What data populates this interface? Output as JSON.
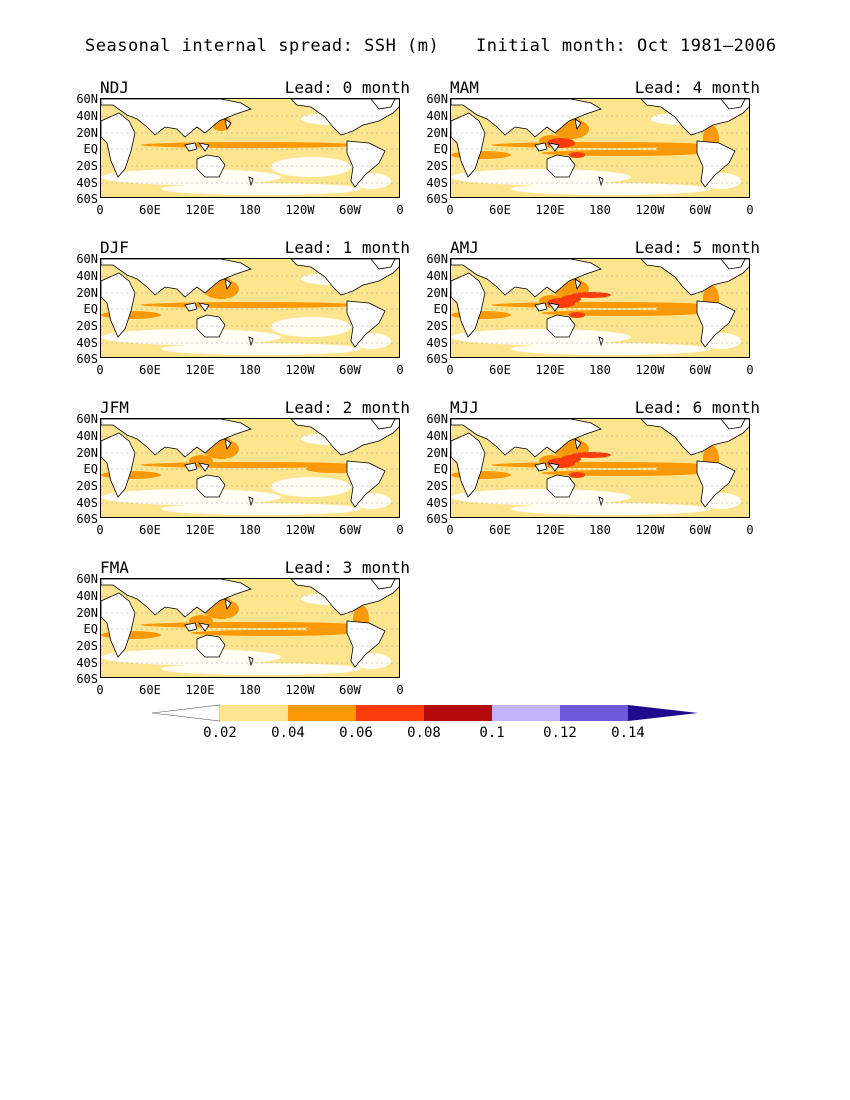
{
  "title": "Seasonal internal spread: SSH (m)",
  "subtitle": "Initial month: Oct 1981—2006",
  "lat_labels": [
    "60N",
    "40N",
    "20N",
    "EQ",
    "20S",
    "40S",
    "60S"
  ],
  "lon_labels": [
    "0",
    "60E",
    "120E",
    "180",
    "120W",
    "60W",
    "0"
  ],
  "panels": [
    {
      "season": "NDJ",
      "lead": "Lead: 0 month",
      "intensity": 0
    },
    {
      "season": "MAM",
      "lead": "Lead: 4 month",
      "intensity": 4
    },
    {
      "season": "DJF",
      "lead": "Lead: 1 month",
      "intensity": 1
    },
    {
      "season": "AMJ",
      "lead": "Lead: 5 month",
      "intensity": 5
    },
    {
      "season": "JFM",
      "lead": "Lead: 2 month",
      "intensity": 2
    },
    {
      "season": "MJJ",
      "lead": "Lead: 6 month",
      "intensity": 6
    },
    {
      "season": "FMA",
      "lead": "Lead: 3 month",
      "intensity": 3
    }
  ],
  "colorbar": {
    "levels": [
      "0.02",
      "0.04",
      "0.06",
      "0.08",
      "0.1",
      "0.12",
      "0.14"
    ],
    "colors": [
      "#ffffff",
      "#fde590",
      "#fb9a06",
      "#fa3c0c",
      "#b40a0a",
      "#c2b4fa",
      "#6b5ad9",
      "#1e0a8c"
    ]
  }
}
